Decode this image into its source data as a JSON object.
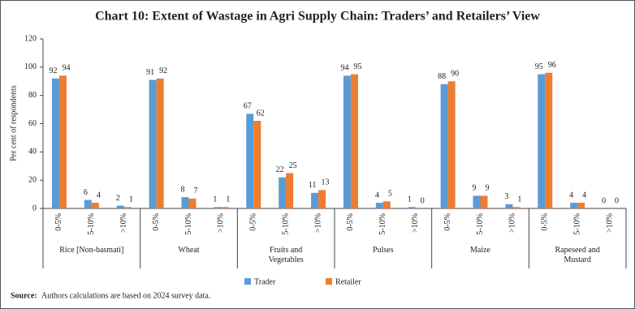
{
  "chart_data": {
    "type": "bar",
    "title": "Chart 10: Extent of Wastage in Agri Supply Chain: Traders’ and Retailers’ View",
    "y_label": "Per cent of respondents",
    "groups": [
      "Rice [Non-basmati]",
      "Wheat",
      "Fruits and Vegetables",
      "Pulses",
      "Maize",
      "Rapeseed and Mustard"
    ],
    "categories": [
      "0-5%",
      "5-10%",
      ">10%",
      "0-5%",
      "5-10%",
      ">10%",
      "0-5%",
      "5-10%",
      ">10%",
      "0-5%",
      "5-10%",
      ">10%",
      "0-5%",
      "5-10%",
      ">10%",
      "0-5%",
      "5-10%",
      ">10%"
    ],
    "series": [
      {
        "name": "Trader",
        "color": "#5b9bd5",
        "values": [
          92,
          6,
          2,
          91,
          8,
          1,
          67,
          22,
          11,
          94,
          4,
          1,
          88,
          9,
          3,
          95,
          4,
          0
        ]
      },
      {
        "name": "Retailer",
        "color": "#ed7d31",
        "values": [
          94,
          4,
          1,
          92,
          7,
          1,
          62,
          25,
          13,
          95,
          5,
          0,
          90,
          9,
          1,
          96,
          4,
          0
        ]
      }
    ],
    "ylim": [
      0,
      120
    ],
    "yticks": [
      0,
      20,
      40,
      60,
      80,
      100,
      120
    ],
    "grid": false,
    "legend": "bottom",
    "source_label": "Source:",
    "source": "Authors calculations are based on 2024 survey data."
  }
}
